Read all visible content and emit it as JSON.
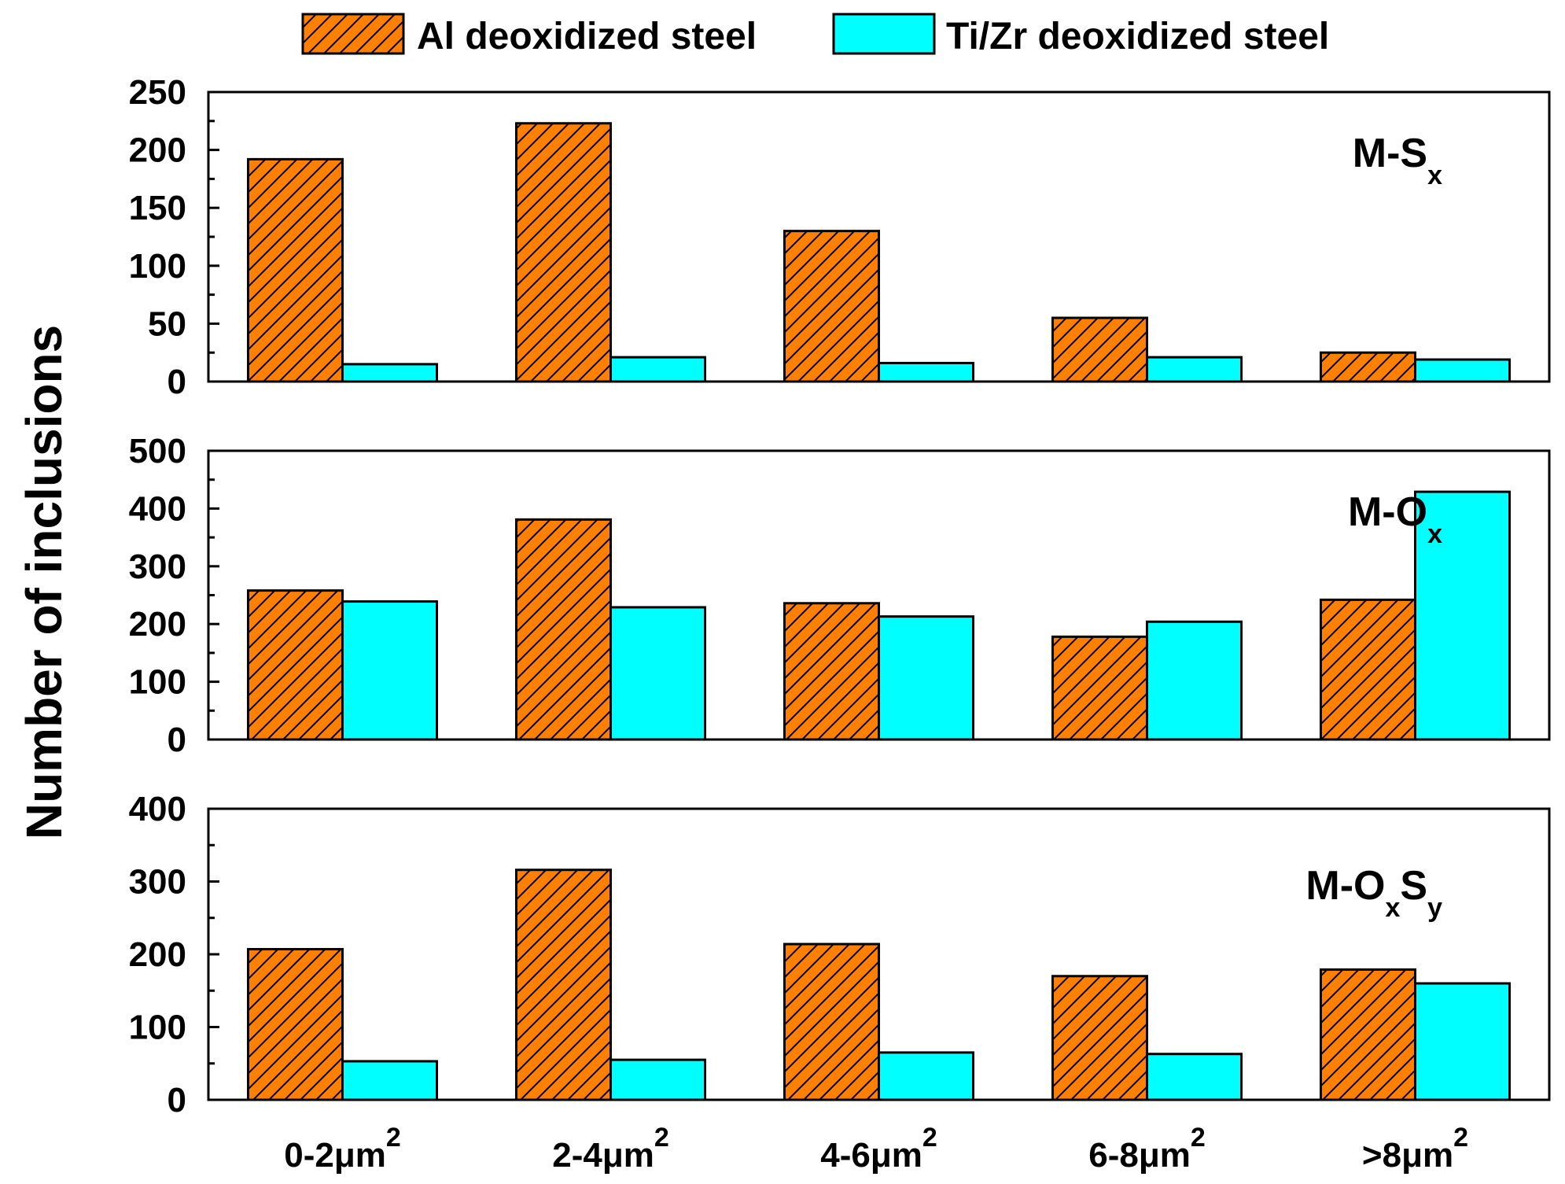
{
  "chart_data": {
    "type": "bar",
    "ylabel": "Number of inclusions",
    "categories": [
      {
        "base": "0-2",
        "unit": "μm",
        "sup": "2"
      },
      {
        "base": "2-4",
        "unit": "μm",
        "sup": "2"
      },
      {
        "base": "4-6",
        "unit": "μm",
        "sup": "2"
      },
      {
        "base": "6-8",
        "unit": "μm",
        "sup": "2"
      },
      {
        "base": ">8",
        "unit": "μm",
        "sup": "2"
      }
    ],
    "legend": [
      {
        "name": "Al deoxidized steel",
        "color": "#FF8000",
        "pattern": "hatch"
      },
      {
        "name": "Ti/Zr deoxidized steel",
        "color": "#00FFFF",
        "pattern": "solid"
      }
    ],
    "panels": [
      {
        "label": {
          "base": "M-S",
          "sub1": "x",
          "mid": "",
          "sub2": ""
        },
        "ylim": [
          0,
          250
        ],
        "yticks": [
          "0",
          "50",
          "100",
          "150",
          "200",
          "250"
        ],
        "series": [
          {
            "name": "Al deoxidized steel",
            "values": [
              192,
              223,
              130,
              55,
              25
            ]
          },
          {
            "name": "Ti/Zr deoxidized steel",
            "values": [
              15,
              21,
              16,
              21,
              19
            ]
          }
        ]
      },
      {
        "label": {
          "base": "M-O",
          "sub1": "x",
          "mid": "",
          "sub2": ""
        },
        "ylim": [
          0,
          500
        ],
        "yticks": [
          "0",
          "100",
          "200",
          "300",
          "400",
          "500"
        ],
        "series": [
          {
            "name": "Al deoxidized steel",
            "values": [
              258,
              381,
              236,
              178,
              242
            ]
          },
          {
            "name": "Ti/Zr deoxidized steel",
            "values": [
              239,
              229,
              213,
              204,
              429
            ]
          }
        ]
      },
      {
        "label": {
          "base": "M-O",
          "sub1": "x",
          "mid": "S",
          "sub2": "y"
        },
        "ylim": [
          0,
          400
        ],
        "yticks": [
          "0",
          "100",
          "200",
          "300",
          "400"
        ],
        "series": [
          {
            "name": "Al deoxidized steel",
            "values": [
              207,
              316,
              214,
              170,
              179
            ]
          },
          {
            "name": "Ti/Zr deoxidized steel",
            "values": [
              53,
              55,
              65,
              63,
              160
            ]
          }
        ]
      }
    ]
  }
}
